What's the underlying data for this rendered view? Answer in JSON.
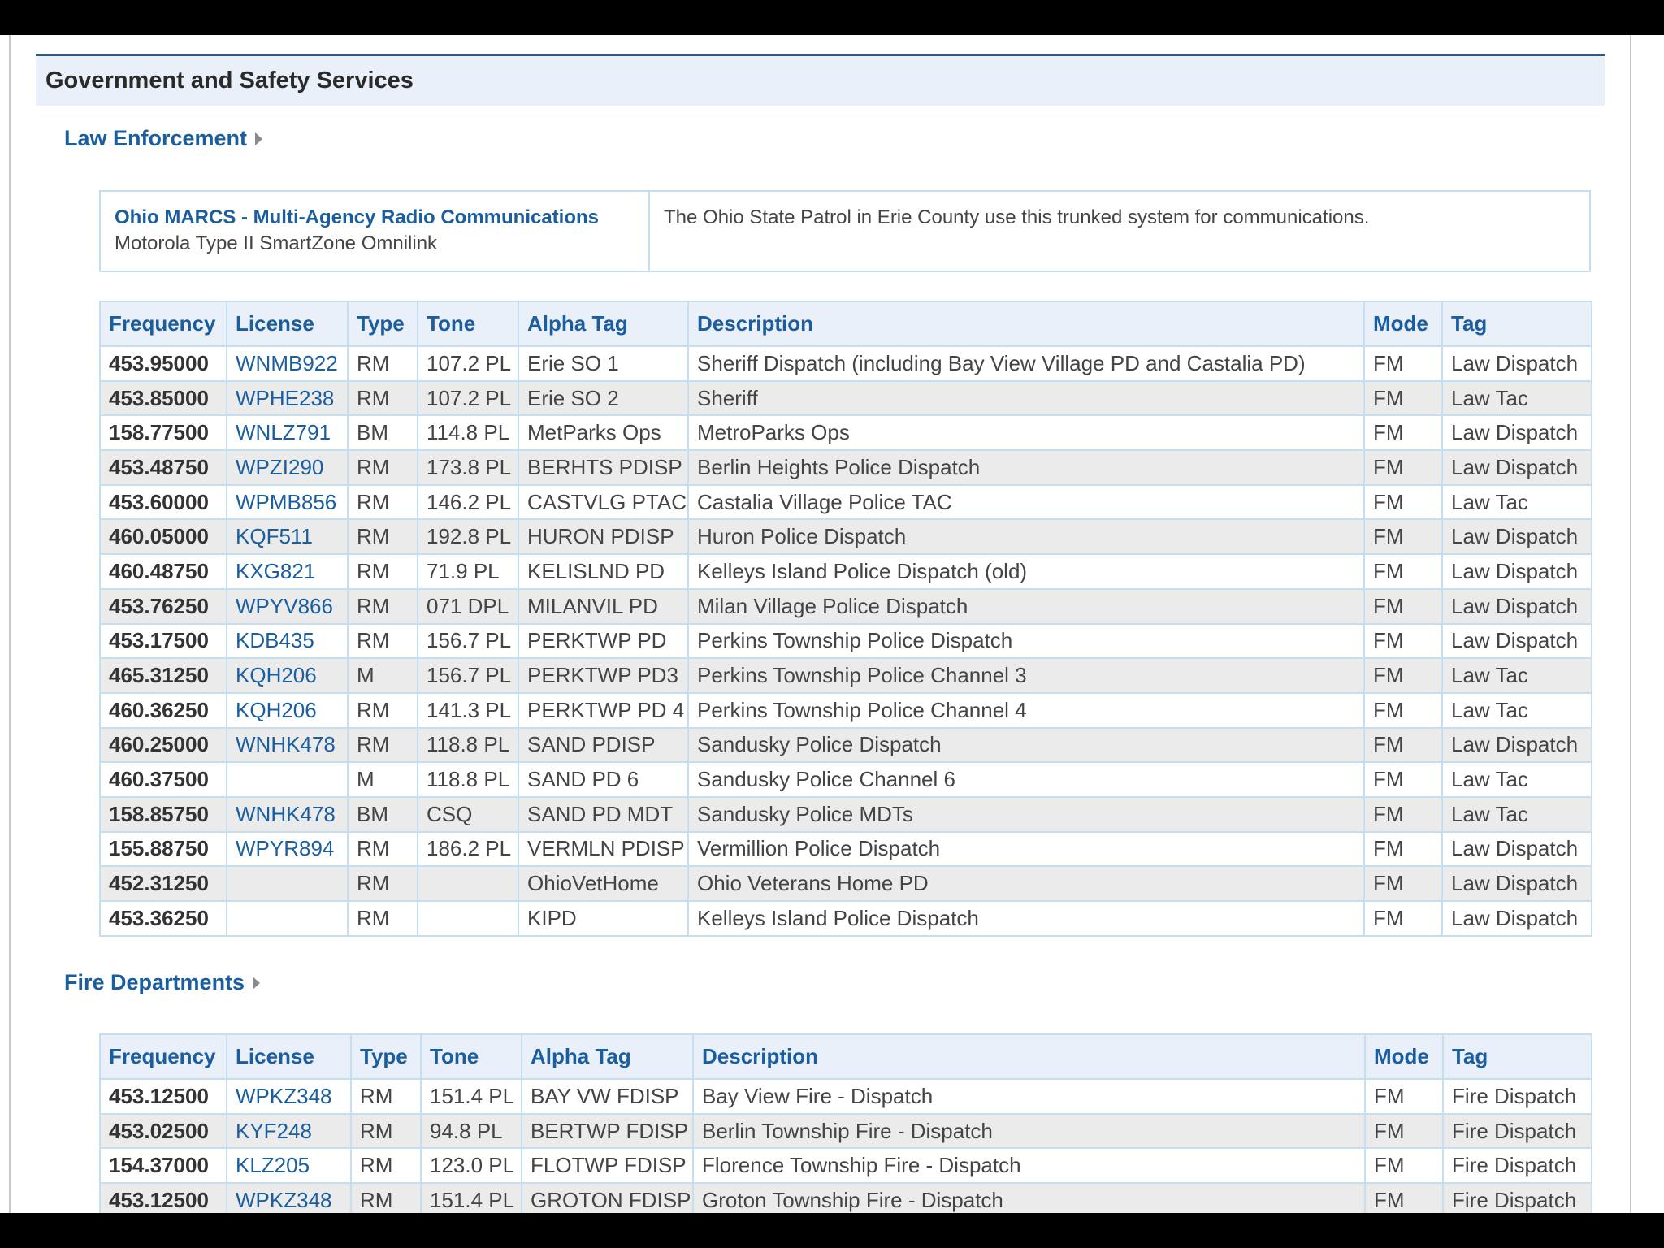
{
  "section": {
    "title": "Government and Safety Services"
  },
  "law": {
    "heading": "Law Enforcement",
    "system": {
      "name": "Ohio MARCS - Multi-Agency Radio Communications",
      "type": "Motorola Type II SmartZone Omnilink",
      "description": "The Ohio State Patrol in Erie County use this trunked system for communications."
    },
    "columns": [
      "Frequency",
      "License",
      "Type",
      "Tone",
      "Alpha Tag",
      "Description",
      "Mode",
      "Tag"
    ],
    "rows": [
      [
        "453.95000",
        "WNMB922",
        "RM",
        "107.2 PL",
        "Erie SO 1",
        "Sheriff Dispatch (including Bay View Village PD and Castalia PD)",
        "FM",
        "Law Dispatch"
      ],
      [
        "453.85000",
        "WPHE238",
        "RM",
        "107.2 PL",
        "Erie SO 2",
        "Sheriff",
        "FM",
        "Law Tac"
      ],
      [
        "158.77500",
        "WNLZ791",
        "BM",
        "114.8 PL",
        "MetParks Ops",
        "MetroParks Ops",
        "FM",
        "Law Dispatch"
      ],
      [
        "453.48750",
        "WPZI290",
        "RM",
        "173.8 PL",
        "BERHTS PDISP",
        "Berlin Heights Police Dispatch",
        "FM",
        "Law Dispatch"
      ],
      [
        "453.60000",
        "WPMB856",
        "RM",
        "146.2 PL",
        "CASTVLG PTAC",
        "Castalia Village Police TAC",
        "FM",
        "Law Tac"
      ],
      [
        "460.05000",
        "KQF511",
        "RM",
        "192.8 PL",
        "HURON PDISP",
        "Huron Police Dispatch",
        "FM",
        "Law Dispatch"
      ],
      [
        "460.48750",
        "KXG821",
        "RM",
        "71.9 PL",
        "KELISLND PD",
        "Kelleys Island Police Dispatch (old)",
        "FM",
        "Law Dispatch"
      ],
      [
        "453.76250",
        "WPYV866",
        "RM",
        "071 DPL",
        "MILANVIL PD",
        "Milan Village Police Dispatch",
        "FM",
        "Law Dispatch"
      ],
      [
        "453.17500",
        "KDB435",
        "RM",
        "156.7 PL",
        "PERKTWP PD",
        "Perkins Township Police Dispatch",
        "FM",
        "Law Dispatch"
      ],
      [
        "465.31250",
        "KQH206",
        "M",
        "156.7 PL",
        "PERKTWP PD3",
        "Perkins Township Police Channel 3",
        "FM",
        "Law Tac"
      ],
      [
        "460.36250",
        "KQH206",
        "RM",
        "141.3 PL",
        "PERKTWP PD 4",
        "Perkins Township Police Channel 4",
        "FM",
        "Law Tac"
      ],
      [
        "460.25000",
        "WNHK478",
        "RM",
        "118.8 PL",
        "SAND PDISP",
        "Sandusky Police Dispatch",
        "FM",
        "Law Dispatch"
      ],
      [
        "460.37500",
        "",
        "M",
        "118.8 PL",
        "SAND PD 6",
        "Sandusky Police Channel 6",
        "FM",
        "Law Tac"
      ],
      [
        "158.85750",
        "WNHK478",
        "BM",
        "CSQ",
        "SAND PD MDT",
        "Sandusky Police MDTs",
        "FM",
        "Law Tac"
      ],
      [
        "155.88750",
        "WPYR894",
        "RM",
        "186.2 PL",
        "VERMLN PDISP",
        "Vermillion Police Dispatch",
        "FM",
        "Law Dispatch"
      ],
      [
        "452.31250",
        "",
        "RM",
        "",
        "OhioVetHome",
        "Ohio Veterans Home PD",
        "FM",
        "Law Dispatch"
      ],
      [
        "453.36250",
        "",
        "RM",
        "",
        "KIPD",
        "Kelleys Island Police Dispatch",
        "FM",
        "Law Dispatch"
      ]
    ]
  },
  "fire": {
    "heading": "Fire Departments",
    "columns": [
      "Frequency",
      "License",
      "Type",
      "Tone",
      "Alpha Tag",
      "Description",
      "Mode",
      "Tag"
    ],
    "rows": [
      [
        "453.12500",
        "WPKZ348",
        "RM",
        "151.4 PL",
        "BAY VW FDISP",
        "Bay View Fire - Dispatch",
        "FM",
        "Fire Dispatch"
      ],
      [
        "453.02500",
        "KYF248",
        "RM",
        "94.8 PL",
        "BERTWP FDISP",
        "Berlin Township Fire - Dispatch",
        "FM",
        "Fire Dispatch"
      ],
      [
        "154.37000",
        "KLZ205",
        "RM",
        "123.0 PL",
        "FLOTWP FDISP",
        "Florence Township Fire - Dispatch",
        "FM",
        "Fire Dispatch"
      ],
      [
        "453.12500",
        "WPKZ348",
        "RM",
        "151.4 PL",
        "GROTON FDISP",
        "Groton Township Fire - Dispatch",
        "FM",
        "Fire Dispatch"
      ]
    ]
  }
}
